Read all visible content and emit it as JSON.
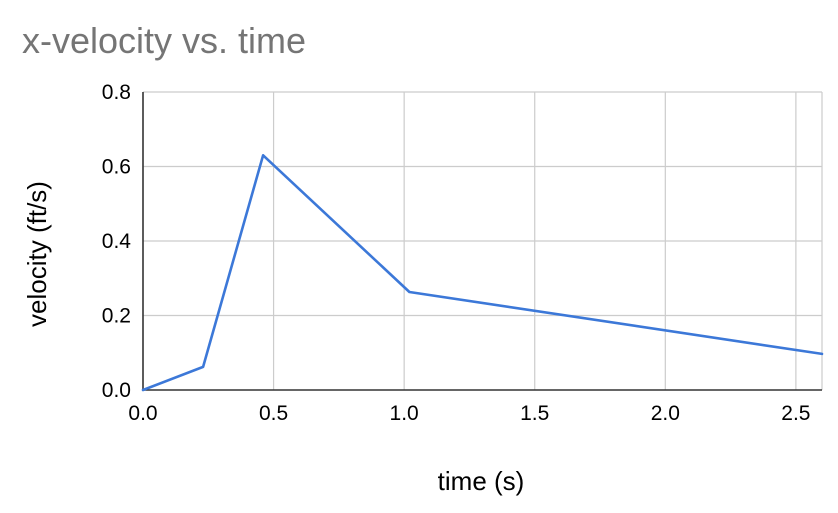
{
  "chart_data": {
    "type": "line",
    "title": "x-velocity vs. time",
    "xlabel": "time (s)",
    "ylabel": "velocity (ft/s)",
    "xlim": [
      0,
      2.6
    ],
    "ylim": [
      0,
      0.8
    ],
    "x_ticks": [
      "0.0",
      "0.5",
      "1.0",
      "1.5",
      "2.0",
      "2.5"
    ],
    "y_ticks": [
      "0.0",
      "0.2",
      "0.4",
      "0.6",
      "0.8"
    ],
    "grid": true,
    "legend": "none",
    "series": [
      {
        "color": "#3c78d8",
        "points": [
          {
            "x": 0.0,
            "y": 0.0
          },
          {
            "x": 0.23,
            "y": 0.062
          },
          {
            "x": 0.46,
            "y": 0.63
          },
          {
            "x": 1.02,
            "y": 0.263
          },
          {
            "x": 2.6,
            "y": 0.097
          }
        ]
      }
    ]
  }
}
